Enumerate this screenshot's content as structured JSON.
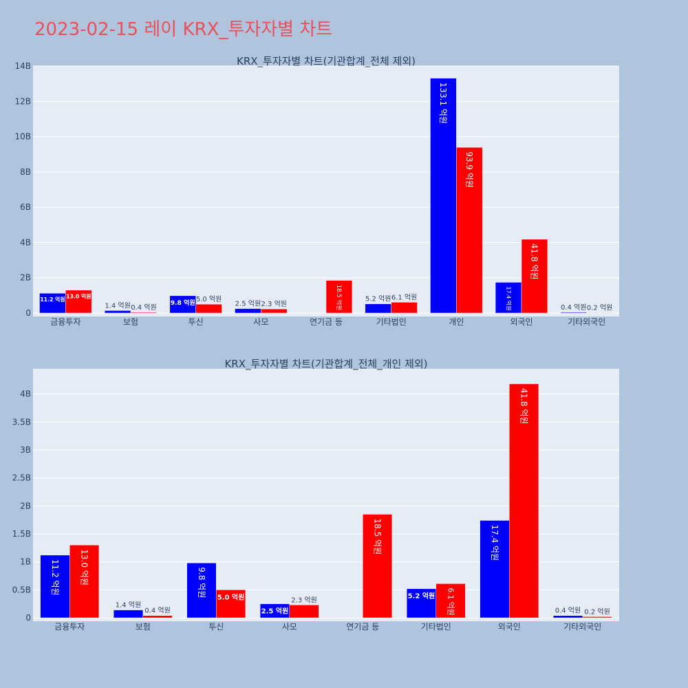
{
  "title": "2023-02-15 레이 KRX_투자자별 차트",
  "colors": {
    "background": "#b0c4de",
    "plot_bg": "#e5ecf6",
    "title": "#e8505b",
    "series_a": "#0000ff",
    "series_b": "#ff0000"
  },
  "chart_data": [
    {
      "type": "bar",
      "title": "KRX_투자자별 차트(기관합계_전체 제외)",
      "categories": [
        "금융투자",
        "보험",
        "투신",
        "사모",
        "연기금 등",
        "기타법인",
        "개인",
        "외국인",
        "기타외국인"
      ],
      "series": [
        {
          "values": [
            1120000000,
            140000000,
            980000000,
            250000000,
            0,
            520000000,
            13310000000,
            1740000000,
            40000000
          ],
          "labels": [
            "11.2 억원",
            "1.4 억원",
            "9.8 억원",
            "2.5 억원",
            "",
            "5.2 억원",
            "133.1 억원",
            "17.4 억원",
            "0.4 억원"
          ],
          "color": "#0000ff"
        },
        {
          "values": [
            1300000000,
            40000000,
            500000000,
            230000000,
            1850000000,
            610000000,
            9390000000,
            4180000000,
            20000000
          ],
          "labels": [
            "13.0 억원",
            "0.4 억원",
            "5.0 억원",
            "2.3 억원",
            "18.5 억원",
            "6.1 억원",
            "93.9 억원",
            "41.8 억원",
            "0.2 억원"
          ],
          "color": "#ff0000"
        }
      ],
      "ylim": [
        0,
        14000000000
      ],
      "yticks": [
        0,
        2000000000,
        4000000000,
        6000000000,
        8000000000,
        10000000000,
        12000000000,
        14000000000
      ],
      "ytick_labels": [
        "0",
        "2B",
        "4B",
        "6B",
        "8B",
        "10B",
        "12B",
        "14B"
      ],
      "grid": true
    },
    {
      "type": "bar",
      "title": "KRX_투자자별 차트(기관합계_전체_개인 제외)",
      "categories": [
        "금융투자",
        "보험",
        "투신",
        "사모",
        "연기금 등",
        "기타법인",
        "외국인",
        "기타외국인"
      ],
      "series": [
        {
          "values": [
            1120000000,
            140000000,
            980000000,
            250000000,
            0,
            520000000,
            1740000000,
            40000000
          ],
          "labels": [
            "11.2 억원",
            "1.4 억원",
            "9.8 억원",
            "2.5 억원",
            "",
            "5.2 억원",
            "17.4 억원",
            "0.4 억원"
          ],
          "color": "#0000ff"
        },
        {
          "values": [
            1300000000,
            40000000,
            500000000,
            230000000,
            1850000000,
            610000000,
            4180000000,
            20000000
          ],
          "labels": [
            "13.0 억원",
            "0.4 억원",
            "5.0 억원",
            "2.3 억원",
            "18.5 억원",
            "6.1 억원",
            "41.8 억원",
            "0.2 억원"
          ],
          "color": "#ff0000"
        }
      ],
      "ylim": [
        0,
        4450000000
      ],
      "yticks": [
        0,
        500000000,
        1000000000,
        1500000000,
        2000000000,
        2500000000,
        3000000000,
        3500000000,
        4000000000
      ],
      "ytick_labels": [
        "0",
        "0.5B",
        "1B",
        "1.5B",
        "2B",
        "2.5B",
        "3B",
        "3.5B",
        "4B"
      ],
      "grid": true
    }
  ]
}
